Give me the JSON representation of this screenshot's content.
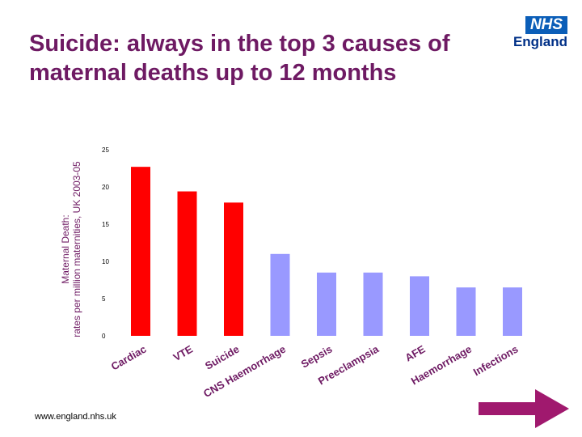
{
  "slide": {
    "title": "Suicide: always in the top 3 causes of maternal deaths up to 12 months",
    "logo_box": "NHS",
    "logo_text": "England",
    "footer": "www.england.nhs.uk",
    "colors": {
      "title": "#6e1a63",
      "highlight": "#ff0000",
      "other": "#9999ff",
      "arrow": "#a0196e",
      "nhs_blue": "#0b5eb8"
    }
  },
  "chart_data": {
    "type": "bar",
    "title": "",
    "xlabel": "",
    "ylabel_line1": "Maternal Death:",
    "ylabel_line2": "rates per million maternities, UK 2003-05",
    "ylim": [
      0,
      25
    ],
    "yticks": [
      0,
      5,
      10,
      15,
      20,
      25
    ],
    "categories": [
      "Cardiac",
      "VTE",
      "Suicide",
      "CNS Haemorrhage",
      "Sepsis",
      "Preeclampsia",
      "AFE",
      "Haemorrhage",
      "Infections"
    ],
    "values": [
      22.7,
      19.4,
      17.9,
      11.0,
      8.5,
      8.5,
      8.0,
      6.5,
      6.5
    ],
    "highlighted": [
      true,
      true,
      true,
      false,
      false,
      false,
      false,
      false,
      false
    ]
  }
}
